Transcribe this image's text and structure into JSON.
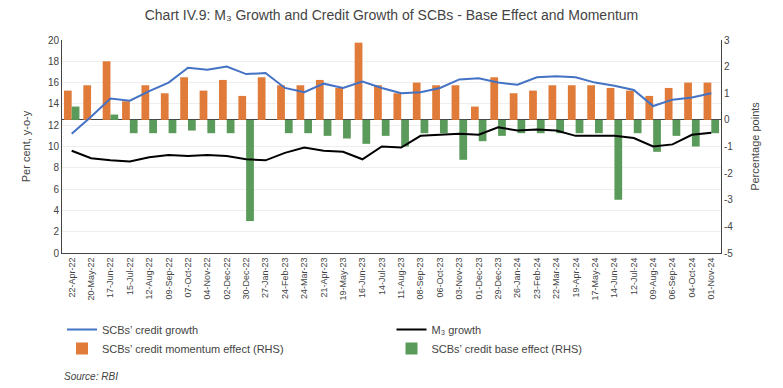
{
  "chart_data": {
    "type": "bar",
    "title": "Chart IV.9: M₃ Growth and Credit Growth of SCBs - Base Effect and Momentum",
    "ylabel": "Per cent, y-o-y",
    "y2label": "Percentage points",
    "source": "Source: RBI",
    "categories": [
      "22-Apr-22",
      "20-May-22",
      "17-Jun-22",
      "15-Jul-22",
      "12-Aug-22",
      "09-Sep-22",
      "07-Oct-22",
      "04-Nov-22",
      "02-Dec-22",
      "30-Dec-22",
      "27-Jan-23",
      "24-Feb-23",
      "24-Mar-23",
      "21-Apr-23",
      "19-May-23",
      "16-Jun-23",
      "14-Jul-23",
      "11-Aug-23",
      "08-Sep-23",
      "06-Oct-23",
      "03-Nov-23",
      "01-Dec-23",
      "29-Dec-23",
      "26-Jan-24",
      "23-Feb-24",
      "22-Mar-24",
      "19-Apr-24",
      "17-May-24",
      "14-Jun-24",
      "12-Jul-24",
      "09-Aug-24",
      "06-Sep-24",
      "04-Oct-24",
      "01-Nov-24"
    ],
    "series": [
      {
        "name": "SCBs’ credit growth",
        "type": "line",
        "color": "#4472c4",
        "values": [
          11.2,
          12.8,
          14.5,
          14.3,
          15.2,
          16.0,
          17.4,
          17.2,
          17.5,
          16.8,
          16.9,
          15.5,
          15.1,
          15.9,
          15.5,
          16.1,
          15.5,
          15.0,
          15.1,
          15.5,
          16.3,
          16.4,
          16.0,
          15.8,
          16.5,
          16.6,
          16.5,
          16.0,
          15.7,
          15.3,
          13.8,
          14.4,
          14.6,
          15.0
        ]
      },
      {
        "name": "M₃ growth",
        "type": "line",
        "color": "#000000",
        "values": [
          9.6,
          8.9,
          8.7,
          8.6,
          9.0,
          9.2,
          9.1,
          9.2,
          9.1,
          8.8,
          8.7,
          9.4,
          9.9,
          9.6,
          9.5,
          8.8,
          10.0,
          9.9,
          11.0,
          11.1,
          11.2,
          11.1,
          11.8,
          11.5,
          11.6,
          11.5,
          11.0,
          11.0,
          11.0,
          10.8,
          10.0,
          10.2,
          11.1,
          11.3
        ]
      },
      {
        "name": "SCBs’ credit momentum effect (RHS)",
        "type": "bar",
        "axis": "y2",
        "color": "#e07b39",
        "values": [
          1.1,
          1.3,
          2.2,
          0.7,
          1.3,
          1.0,
          1.6,
          1.1,
          1.5,
          0.9,
          1.6,
          1.3,
          1.3,
          1.5,
          1.2,
          2.9,
          1.3,
          1.0,
          1.4,
          1.3,
          1.3,
          0.5,
          1.6,
          1.0,
          1.1,
          1.3,
          1.3,
          1.3,
          1.2,
          1.1,
          0.9,
          1.2,
          1.4,
          1.4
        ]
      },
      {
        "name": "SCBs’ credit base effect (RHS)",
        "type": "bar",
        "axis": "y2",
        "color": "#5a9a5a",
        "values": [
          0.5,
          0.0,
          0.2,
          -0.5,
          -0.5,
          -0.5,
          -0.4,
          -0.5,
          -0.5,
          -3.8,
          0.0,
          -0.5,
          -0.5,
          -0.6,
          -0.7,
          -0.9,
          -0.6,
          -1.0,
          -0.5,
          -0.5,
          -1.5,
          -0.8,
          -0.6,
          -0.5,
          -0.5,
          -0.5,
          -0.5,
          -0.5,
          -3.0,
          -0.5,
          -1.2,
          -0.6,
          -1.0,
          -0.5
        ]
      }
    ],
    "ylim": [
      0,
      20
    ],
    "yticks": [
      0,
      2,
      4,
      6,
      8,
      10,
      12,
      14,
      16,
      18,
      20
    ],
    "y2lim": [
      -5,
      3
    ],
    "y2ticks": [
      -5,
      -4,
      -3,
      -2,
      -1,
      0,
      1,
      2,
      3
    ],
    "grid": true,
    "legend": "bottom"
  }
}
